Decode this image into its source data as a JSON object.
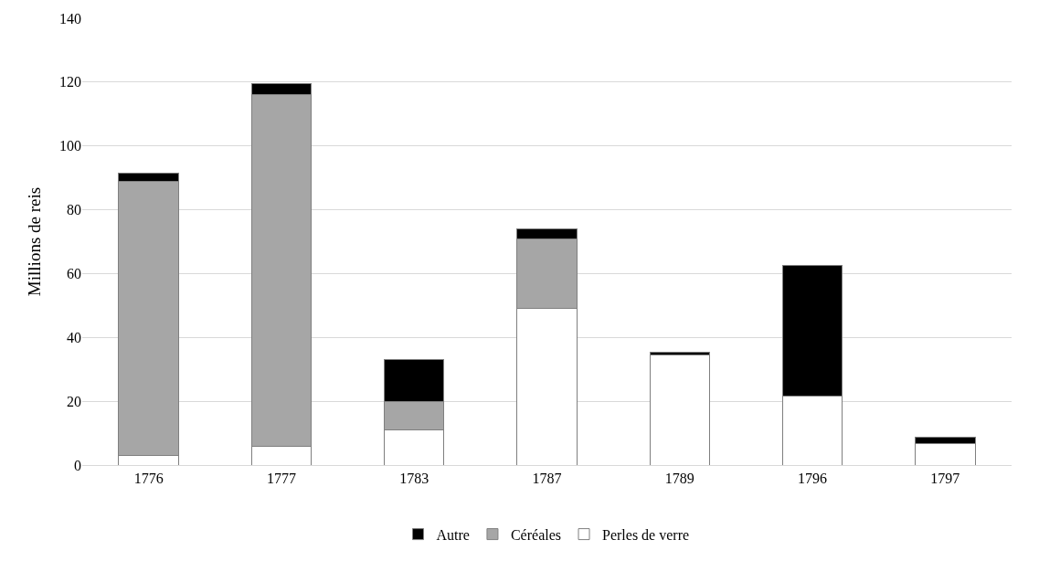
{
  "chart_data": {
    "type": "bar",
    "stacked": true,
    "ylabel": "Millions de reis",
    "categories": [
      "1776",
      "1777",
      "1783",
      "1787",
      "1789",
      "1796",
      "1797"
    ],
    "series": [
      {
        "name": "Perles de verre",
        "color": "#ffffff",
        "values": [
          3,
          6,
          11,
          49,
          34.5,
          21.5,
          6.7
        ]
      },
      {
        "name": "Céréales",
        "color": "#a6a6a6",
        "values": [
          86,
          110,
          9,
          22,
          0,
          0,
          0
        ]
      },
      {
        "name": "Autre",
        "color": "#000000",
        "values": [
          2.5,
          3.5,
          13,
          3,
          1,
          41,
          2
        ]
      }
    ],
    "ylim": [
      0,
      140
    ],
    "yticks": [
      0,
      20,
      40,
      60,
      80,
      100,
      120,
      140
    ],
    "grid": "y",
    "legend": "bottom"
  }
}
